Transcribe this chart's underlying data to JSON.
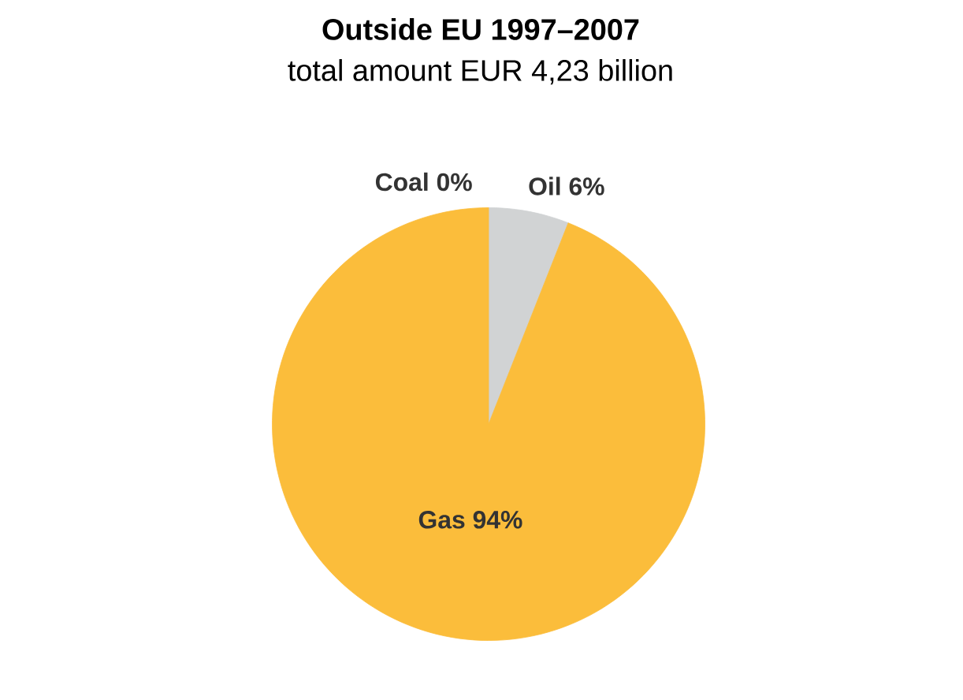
{
  "chart_data": {
    "type": "pie",
    "title": "Outside EU 1997–2007",
    "subtitle": "total amount EUR 4,23 billion",
    "categories": [
      "Oil",
      "Gas",
      "Coal"
    ],
    "values": [
      6,
      94,
      0
    ],
    "value_labels": [
      "6%",
      "94%",
      "0%"
    ],
    "colors": [
      "#d1d3d4",
      "#fbbd3b",
      "#6d6e71"
    ]
  }
}
